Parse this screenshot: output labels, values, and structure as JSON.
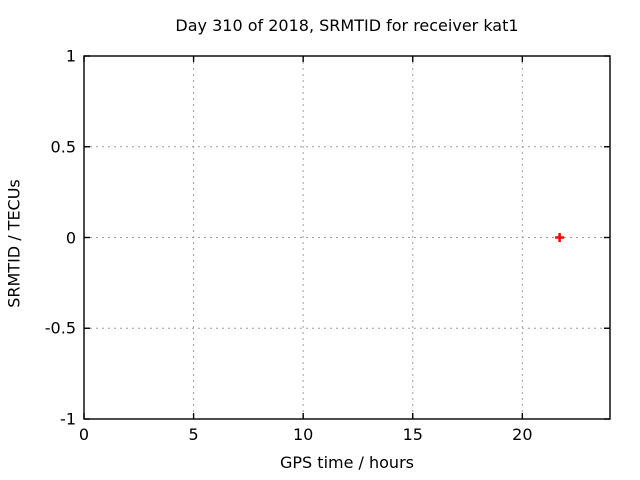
{
  "chart_data": {
    "type": "scatter",
    "title": "Day 310 of 2018, SRMTID for receiver kat1",
    "xlabel": "GPS time / hours",
    "ylabel": "SRMTID / TECUs",
    "xlim": [
      0,
      24
    ],
    "ylim": [
      -1,
      1
    ],
    "x_ticks": [
      0,
      5,
      10,
      15,
      20
    ],
    "y_ticks": [
      -1,
      -0.5,
      0,
      0.5,
      1
    ],
    "grid": true,
    "legend": false,
    "series": [
      {
        "marker": "plus",
        "color": "#ff0000",
        "points": [
          [
            21.7,
            0.0
          ]
        ]
      }
    ],
    "colors": {
      "border": "#000000",
      "grid": "#a0a0a0",
      "text": "#000000",
      "background": "#ffffff"
    }
  }
}
